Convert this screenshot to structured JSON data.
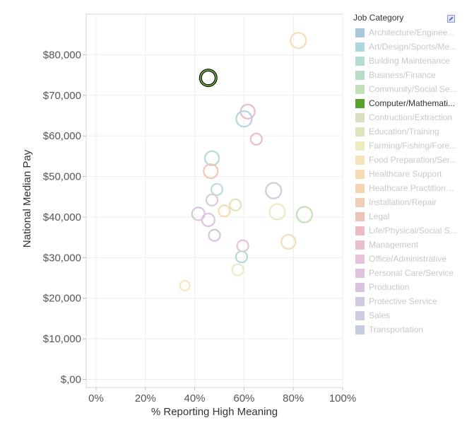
{
  "chart_data": {
    "type": "scatter",
    "xlabel": "% Reporting High Meaning",
    "ylabel": "National Median Pay",
    "xlim": [
      -0.04,
      1.0
    ],
    "ylim": [
      -2000,
      90000
    ],
    "x_ticks": [
      0,
      0.2,
      0.4,
      0.6,
      0.8,
      1.0
    ],
    "x_tick_labels": [
      "0%",
      "20%",
      "40%",
      "60%",
      "80%",
      "100%"
    ],
    "y_ticks": [
      0,
      10000,
      20000,
      30000,
      40000,
      50000,
      60000,
      70000,
      80000
    ],
    "y_tick_labels": [
      "$,00",
      "$10,000",
      "$20,000",
      "$30,000",
      "$40,000",
      "$50,000",
      "$60,000",
      "$70,000",
      "$80,000"
    ],
    "grid": true,
    "legend": {
      "title": "Job Category",
      "placement": "right",
      "entries": [
        {
          "label": "Architecture/Enginee...",
          "color": "#a9c8dc"
        },
        {
          "label": "Art/Design/Sports/Me...",
          "color": "#aed6de"
        },
        {
          "label": "Building Maintenance",
          "color": "#b4dcd5"
        },
        {
          "label": "Business/Finance",
          "color": "#b9dcc4"
        },
        {
          "label": "Community/Social Se...",
          "color": "#c3e0bb"
        },
        {
          "label": "Computer/Mathemati...",
          "color": "#5aa02c"
        },
        {
          "label": "Contruction/Extraction",
          "color": "#d6dfbf"
        },
        {
          "label": "Education/Training",
          "color": "#e0e4bc"
        },
        {
          "label": "Farming/Fishing/Fore...",
          "color": "#ecebc2"
        },
        {
          "label": "Food Preparation/Ser...",
          "color": "#f7e3bd"
        },
        {
          "label": "Healthcare Support",
          "color": "#f6dcb4"
        },
        {
          "label": "Heathcare Practitioners",
          "color": "#f4d3b2"
        },
        {
          "label": "Installation/Repair",
          "color": "#f2ccb6"
        },
        {
          "label": "Legal",
          "color": "#eec4b7"
        },
        {
          "label": "Life/Physical/Social S...",
          "color": "#ecbcc0"
        },
        {
          "label": "Management",
          "color": "#e8bfcf"
        },
        {
          "label": "Office/Administrative",
          "color": "#e6c3d8"
        },
        {
          "label": "Personal Care/Service",
          "color": "#e0c2dc"
        },
        {
          "label": "Production",
          "color": "#d9c4df"
        },
        {
          "label": "Protective Service",
          "color": "#d3c8e0"
        },
        {
          "label": "Sales",
          "color": "#cccbe2"
        },
        {
          "label": "Transportation",
          "color": "#c6cde2"
        }
      ],
      "active": "Computer/Mathemati..."
    },
    "points": [
      {
        "x": 0.82,
        "y": 83500,
        "size": 11,
        "color": "#f7dcb8",
        "highlighted": false
      },
      {
        "x": 0.455,
        "y": 74300,
        "size": 11,
        "color": "#3d7a1c",
        "highlighted": true
      },
      {
        "x": 0.615,
        "y": 66000,
        "size": 10,
        "color": "#ecbcc4",
        "highlighted": false
      },
      {
        "x": 0.6,
        "y": 64200,
        "size": 11,
        "color": "#b9d2e0",
        "highlighted": false
      },
      {
        "x": 0.65,
        "y": 59200,
        "size": 8,
        "color": "#ecbcc8",
        "highlighted": false
      },
      {
        "x": 0.47,
        "y": 54500,
        "size": 10,
        "color": "#b4dcd5",
        "highlighted": false
      },
      {
        "x": 0.465,
        "y": 51300,
        "size": 10,
        "color": "#f2c6b6",
        "highlighted": false
      },
      {
        "x": 0.49,
        "y": 46800,
        "size": 8,
        "color": "#bcdde0",
        "highlighted": false
      },
      {
        "x": 0.72,
        "y": 46500,
        "size": 11,
        "color": "#d3cade",
        "highlighted": false
      },
      {
        "x": 0.47,
        "y": 44200,
        "size": 8,
        "color": "#e0c8dc",
        "highlighted": false
      },
      {
        "x": 0.565,
        "y": 43000,
        "size": 8,
        "color": "#e0e4bc",
        "highlighted": false
      },
      {
        "x": 0.52,
        "y": 41500,
        "size": 8,
        "color": "#f6dcb4",
        "highlighted": false
      },
      {
        "x": 0.735,
        "y": 41300,
        "size": 11,
        "color": "#ecebc2",
        "highlighted": false
      },
      {
        "x": 0.845,
        "y": 40600,
        "size": 11,
        "color": "#c3e0bb",
        "highlighted": false
      },
      {
        "x": 0.415,
        "y": 40800,
        "size": 9,
        "color": "#dac4df",
        "highlighted": false
      },
      {
        "x": 0.455,
        "y": 39300,
        "size": 9,
        "color": "#dec5e0",
        "highlighted": false
      },
      {
        "x": 0.48,
        "y": 35500,
        "size": 8,
        "color": "#d9c4df",
        "highlighted": false
      },
      {
        "x": 0.78,
        "y": 33900,
        "size": 10,
        "color": "#f4dcb8",
        "highlighted": false
      },
      {
        "x": 0.595,
        "y": 32900,
        "size": 8,
        "color": "#e8c3d5",
        "highlighted": false
      },
      {
        "x": 0.59,
        "y": 30200,
        "size": 8,
        "color": "#b4dcd5",
        "highlighted": false
      },
      {
        "x": 0.575,
        "y": 27000,
        "size": 8,
        "color": "#ecebc2",
        "highlighted": false
      },
      {
        "x": 0.36,
        "y": 23100,
        "size": 7,
        "color": "#f2e7bd",
        "highlighted": false
      }
    ]
  }
}
